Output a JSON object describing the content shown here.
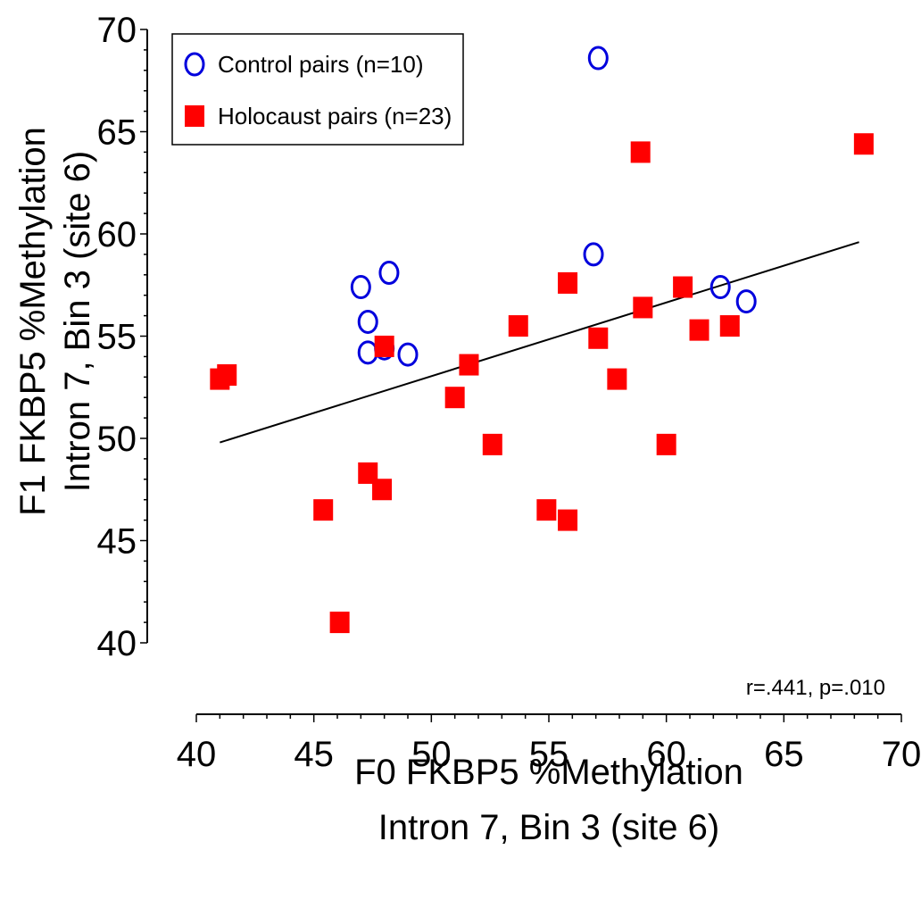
{
  "chart_data": {
    "type": "scatter",
    "title": "",
    "xlabel_lines": [
      "F0 FKBP5 %Methylation",
      "Intron 7, Bin 3 (site 6)"
    ],
    "ylabel_lines": [
      "F1 FKBP5 %Methylation",
      "Intron 7, Bin 3 (site 6)"
    ],
    "xlim": [
      40,
      70
    ],
    "ylim": [
      40,
      70
    ],
    "xticks": [
      40,
      45,
      50,
      55,
      60,
      65,
      70
    ],
    "yticks": [
      40,
      45,
      50,
      55,
      60,
      65,
      70
    ],
    "minor_tick_step": 1,
    "grid": false,
    "legend_position": "top-left",
    "series": [
      {
        "name": "Control pairs (n=10)",
        "marker": "open-circle",
        "color": "#0000dd",
        "points": [
          [
            57.1,
            68.6
          ],
          [
            48.2,
            58.1
          ],
          [
            47.0,
            57.4
          ],
          [
            56.9,
            59.0
          ],
          [
            47.3,
            55.7
          ],
          [
            62.3,
            57.4
          ],
          [
            63.4,
            56.7
          ],
          [
            47.3,
            54.2
          ],
          [
            49.0,
            54.1
          ],
          [
            48.0,
            54.4
          ]
        ]
      },
      {
        "name": "Holocaust pairs (n=23)",
        "marker": "filled-square",
        "color": "#ff0000",
        "points": [
          [
            68.4,
            64.4
          ],
          [
            58.9,
            64.0
          ],
          [
            55.8,
            57.6
          ],
          [
            60.7,
            57.4
          ],
          [
            59.0,
            56.4
          ],
          [
            53.7,
            55.5
          ],
          [
            61.4,
            55.3
          ],
          [
            62.7,
            55.5
          ],
          [
            57.1,
            54.9
          ],
          [
            48.0,
            54.5
          ],
          [
            51.6,
            53.6
          ],
          [
            57.9,
            52.9
          ],
          [
            41.3,
            53.1
          ],
          [
            41.0,
            52.9
          ],
          [
            51.0,
            52.0
          ],
          [
            52.6,
            49.7
          ],
          [
            60.0,
            49.7
          ],
          [
            47.3,
            48.3
          ],
          [
            47.9,
            47.5
          ],
          [
            45.4,
            46.5
          ],
          [
            54.9,
            46.5
          ],
          [
            55.8,
            46.0
          ],
          [
            46.1,
            41.0
          ]
        ]
      }
    ],
    "regression_line": {
      "color": "#000000",
      "x": [
        41.0,
        68.2
      ],
      "y": [
        49.8,
        59.6
      ]
    },
    "annotation": "r=.441, p=.010"
  }
}
